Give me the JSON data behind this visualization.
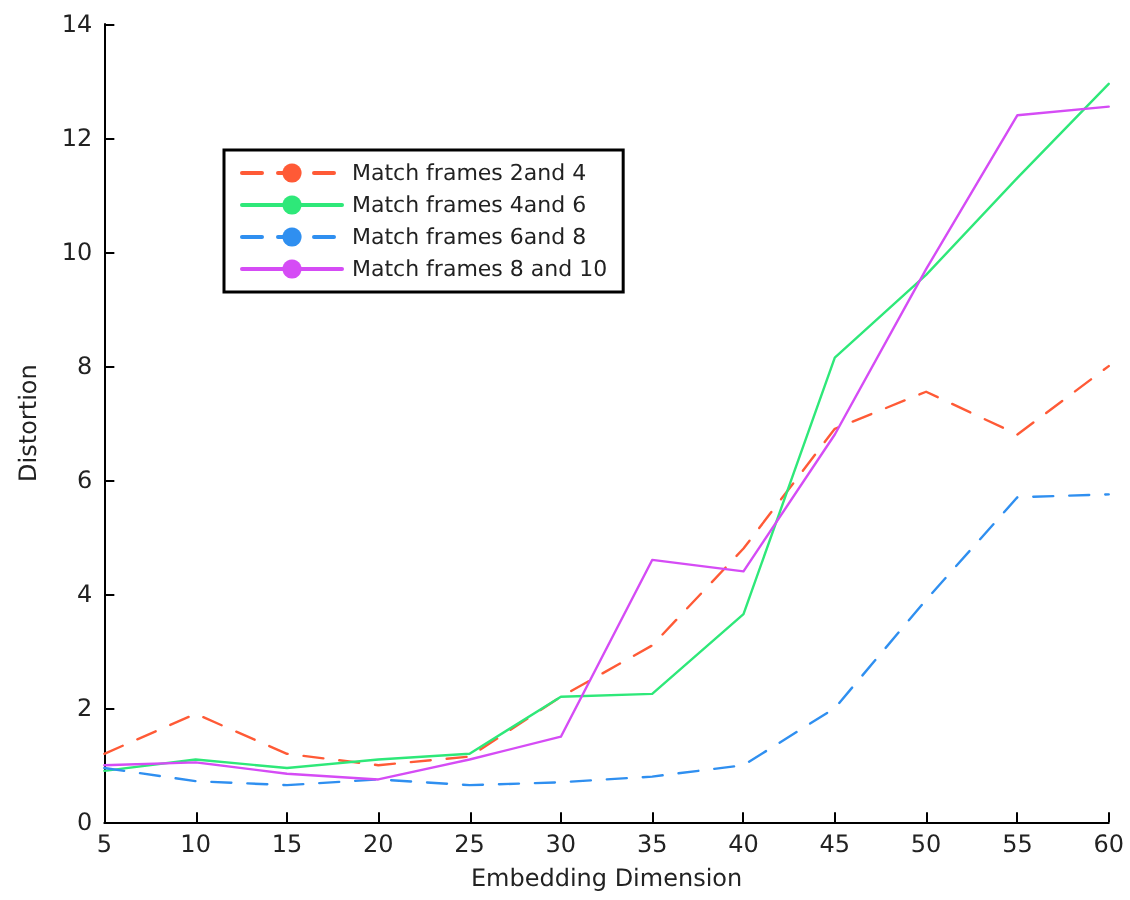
{
  "chart_data": {
    "type": "line",
    "xlabel": "Embedding Dimension",
    "ylabel": "Distortion",
    "x": [
      5,
      10,
      15,
      20,
      25,
      30,
      35,
      40,
      45,
      50,
      55,
      60
    ],
    "xlim": [
      5,
      60
    ],
    "xticks": [
      5,
      10,
      15,
      20,
      25,
      30,
      35,
      40,
      45,
      50,
      55,
      60
    ],
    "ylim": [
      0,
      14
    ],
    "yticks": [
      0,
      2,
      4,
      6,
      8,
      10,
      12,
      14
    ],
    "grid": false,
    "legend": "top left",
    "marker": "none",
    "series": [
      {
        "name": "Match frames 2and 4",
        "color": "#ff5a36",
        "line_style": "dashed",
        "values": [
          1.2,
          1.9,
          1.2,
          1.0,
          1.15,
          2.2,
          3.1,
          4.8,
          6.9,
          7.55,
          6.8,
          8.0
        ]
      },
      {
        "name": "Match frames 4and 6",
        "color": "#2ee879",
        "line_style": "solid",
        "values": [
          0.9,
          1.1,
          0.95,
          1.1,
          1.2,
          2.2,
          2.25,
          3.65,
          8.15,
          9.6,
          11.3,
          12.95
        ]
      },
      {
        "name": "Match frames 6and 8",
        "color": "#2f8ff0",
        "line_style": "dashed",
        "values": [
          0.95,
          0.72,
          0.65,
          0.75,
          0.65,
          0.7,
          0.8,
          1.0,
          2.0,
          3.9,
          5.7,
          5.75
        ]
      },
      {
        "name": "Match frames 8 and 10",
        "color": "#d54cf5",
        "line_style": "solid",
        "values": [
          1.0,
          1.05,
          0.85,
          0.75,
          1.1,
          1.5,
          4.6,
          4.4,
          6.8,
          9.7,
          12.4,
          12.55
        ]
      }
    ]
  }
}
